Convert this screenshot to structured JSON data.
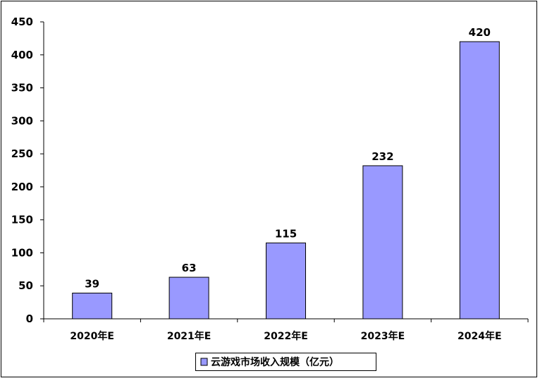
{
  "chart_data": {
    "type": "bar",
    "categories": [
      "2020年E",
      "2021年E",
      "2022年E",
      "2023年E",
      "2024年E"
    ],
    "series": [
      {
        "name": "云游戏市场收入规模（亿元）",
        "values": [
          39,
          63,
          115,
          232,
          420
        ],
        "color": "#9999ff"
      }
    ],
    "data_labels": [
      "39",
      "63",
      "115",
      "232",
      "420"
    ],
    "y_ticks": [
      "0",
      "50",
      "100",
      "150",
      "200",
      "250",
      "300",
      "350",
      "400",
      "450"
    ],
    "ylim": [
      0,
      450
    ],
    "grid": false,
    "legend_position": "bottom",
    "legend_label": "云游戏市场收入规模（亿元）"
  }
}
